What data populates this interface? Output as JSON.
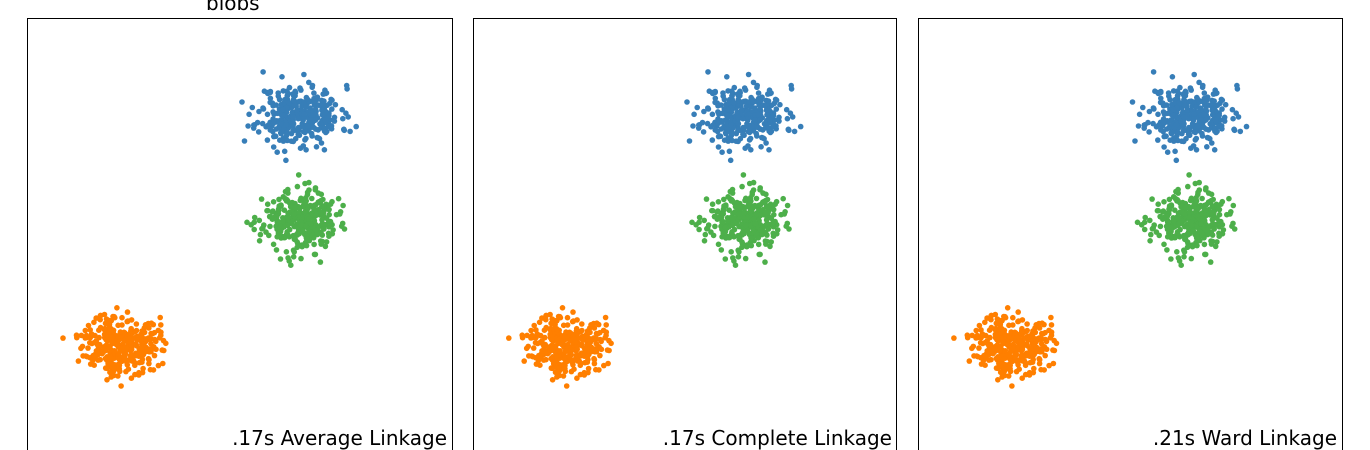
{
  "row_title": "blobs",
  "chart_data": [
    {
      "type": "scatter",
      "panel": "average",
      "annotation": ".17s Average Linkage",
      "grid": false,
      "xlim": [
        -2.5,
        2.5
      ],
      "ylim": [
        -2.5,
        2.5
      ],
      "series": [
        {
          "color": "#377eb8",
          "center": [
            0.7,
            1.4
          ],
          "spread": [
            0.24,
            0.17
          ],
          "count": 330,
          "seed": 11
        },
        {
          "color": "#4daf4a",
          "center": [
            0.7,
            0.2
          ],
          "spread": [
            0.21,
            0.17
          ],
          "count": 330,
          "seed": 23
        },
        {
          "color": "#ff7f00",
          "center": [
            -1.4,
            -1.2
          ],
          "spread": [
            0.22,
            0.17
          ],
          "count": 330,
          "seed": 37
        }
      ]
    },
    {
      "type": "scatter",
      "panel": "complete",
      "annotation": ".17s Complete Linkage",
      "grid": false,
      "xlim": [
        -2.5,
        2.5
      ],
      "ylim": [
        -2.5,
        2.5
      ],
      "series": [
        {
          "color": "#377eb8",
          "center": [
            0.7,
            1.4
          ],
          "spread": [
            0.24,
            0.17
          ],
          "count": 330,
          "seed": 11
        },
        {
          "color": "#4daf4a",
          "center": [
            0.7,
            0.2
          ],
          "spread": [
            0.21,
            0.17
          ],
          "count": 330,
          "seed": 23
        },
        {
          "color": "#ff7f00",
          "center": [
            -1.4,
            -1.2
          ],
          "spread": [
            0.22,
            0.17
          ],
          "count": 330,
          "seed": 37
        }
      ]
    },
    {
      "type": "scatter",
      "panel": "ward",
      "annotation": ".21s Ward Linkage",
      "grid": false,
      "xlim": [
        -2.5,
        2.5
      ],
      "ylim": [
        -2.5,
        2.5
      ],
      "series": [
        {
          "color": "#377eb8",
          "center": [
            0.7,
            1.4
          ],
          "spread": [
            0.24,
            0.17
          ],
          "count": 330,
          "seed": 11
        },
        {
          "color": "#4daf4a",
          "center": [
            0.7,
            0.2
          ],
          "spread": [
            0.21,
            0.17
          ],
          "count": 330,
          "seed": 23
        },
        {
          "color": "#ff7f00",
          "center": [
            -1.4,
            -1.2
          ],
          "spread": [
            0.22,
            0.17
          ],
          "count": 330,
          "seed": 37
        }
      ]
    }
  ]
}
